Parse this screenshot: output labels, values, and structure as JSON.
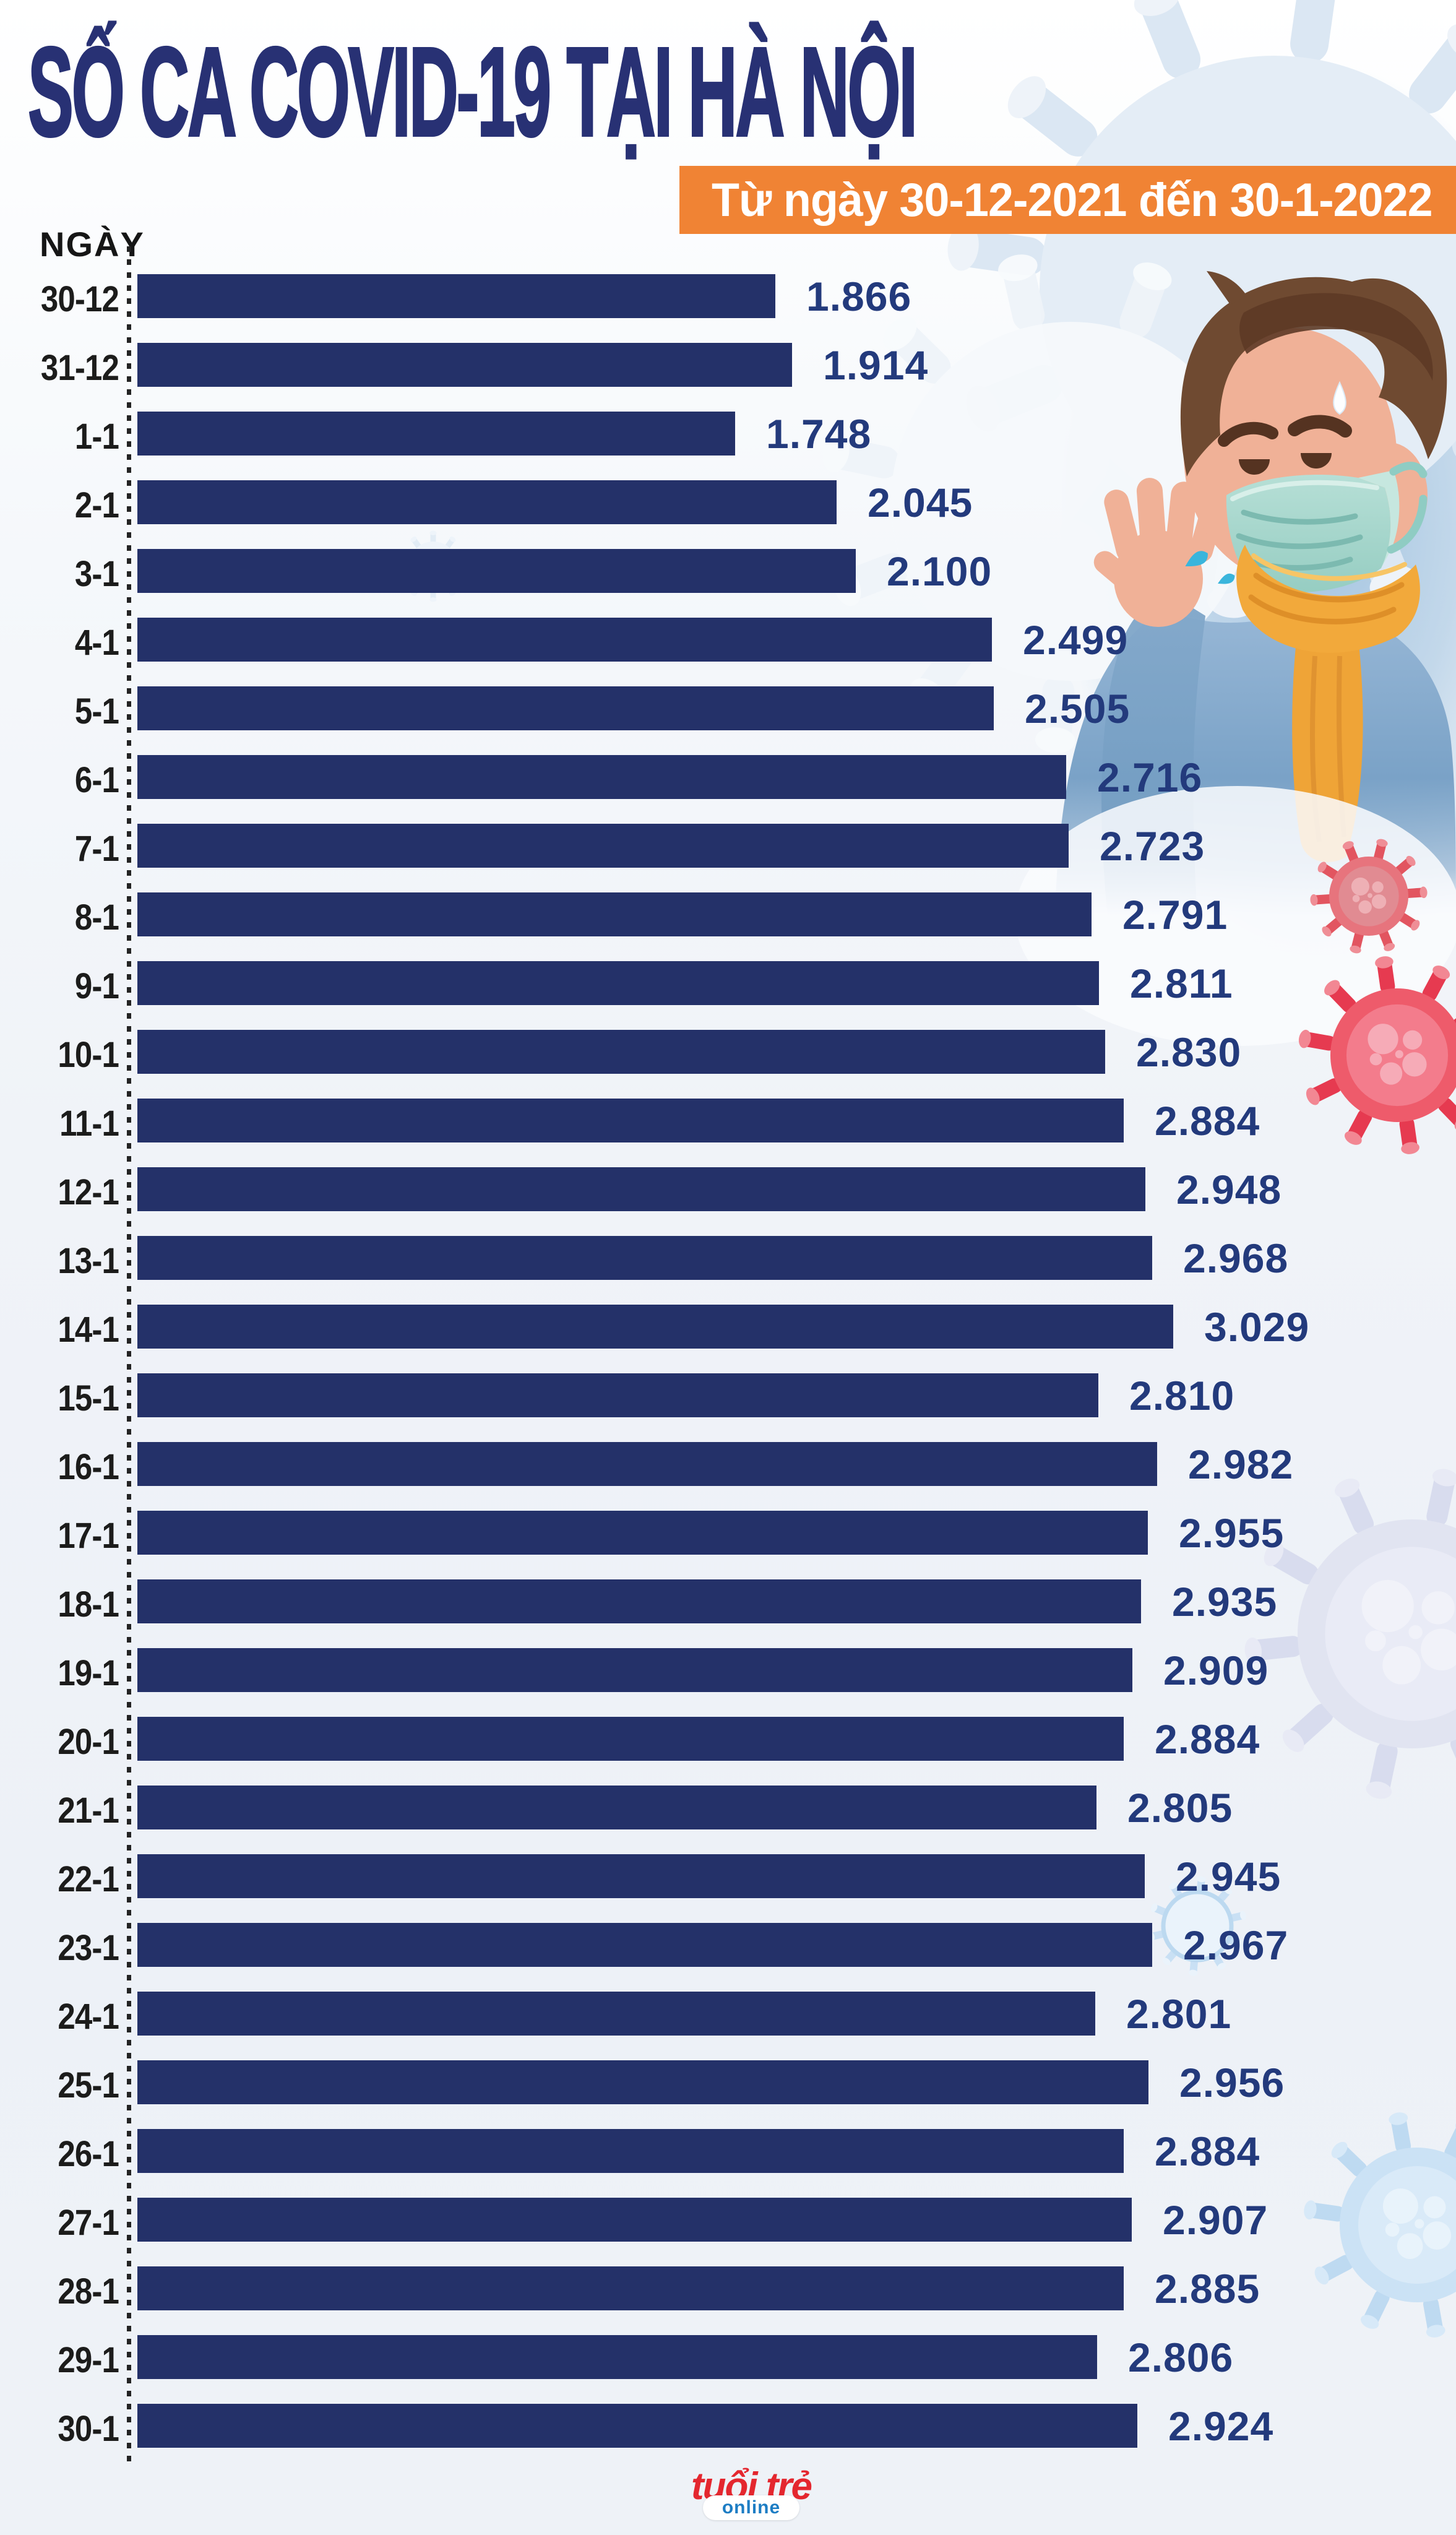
{
  "header": {
    "title": "SỐ CA COVID-19 TẠI HÀ NỘI",
    "subtitle": "Từ ngày 30-12-2021 đến 30-1-2022",
    "axis_label": "NGÀY"
  },
  "chart_data": {
    "type": "bar",
    "orientation": "horizontal",
    "title": "SỐ CA COVID-19 TẠI HÀ NỘI",
    "subtitle": "Từ ngày 30-12-2021 đến 30-1-2022",
    "xlabel": "NGÀY",
    "categories": [
      "30-12",
      "31-12",
      "1-1",
      "2-1",
      "3-1",
      "4-1",
      "5-1",
      "6-1",
      "7-1",
      "8-1",
      "9-1",
      "10-1",
      "11-1",
      "12-1",
      "13-1",
      "14-1",
      "15-1",
      "16-1",
      "17-1",
      "18-1",
      "19-1",
      "20-1",
      "21-1",
      "22-1",
      "23-1",
      "24-1",
      "25-1",
      "26-1",
      "27-1",
      "28-1",
      "29-1",
      "30-1"
    ],
    "values": [
      1866,
      1914,
      1748,
      2045,
      2100,
      2499,
      2505,
      2716,
      2723,
      2791,
      2811,
      2830,
      2884,
      2948,
      2968,
      3029,
      2810,
      2982,
      2955,
      2935,
      2909,
      2884,
      2805,
      2945,
      2967,
      2801,
      2956,
      2884,
      2907,
      2885,
      2806,
      2924
    ],
    "value_labels": [
      "1.866",
      "1.914",
      "1.748",
      "2.045",
      "2.100",
      "2.499",
      "2.505",
      "2.716",
      "2.723",
      "2.791",
      "2.811",
      "2.830",
      "2.884",
      "2.948",
      "2.968",
      "3.029",
      "2.810",
      "2.982",
      "2.955",
      "2.935",
      "2.909",
      "2.884",
      "2.805",
      "2.945",
      "2.967",
      "2.801",
      "2.956",
      "2.884",
      "2.907",
      "2.885",
      "2.806",
      "2.924"
    ],
    "value_axis_max": 3029,
    "grid": false,
    "legend": false
  },
  "footer": {
    "logo_main": "tuổi trẻ",
    "logo_sub": "online"
  },
  "palette": {
    "title_navy": "#283174",
    "bar_navy": "#243169",
    "value_navy": "#233a7c",
    "date_label": "#1c1c1b",
    "subtitle_orange": "#f08334",
    "subtitle_text": "#ffffff",
    "logo_red": "#e4272f",
    "logo_blue": "#1d7dc4",
    "virus_red": "#ee5b6b",
    "virus_pale_blue": "#cbe2f5",
    "virus_lavender": "#e1e4f1",
    "mask_teal": "#a5d6cd",
    "scarf_orange": "#f2a93b",
    "jacket_blue": "#7fa6ca",
    "skin": "#f0b197",
    "hair_brown": "#6f4a31",
    "droplet_teal": "#3ab5dc"
  },
  "icons": {
    "virus": "coronavirus-icon",
    "man": "sick-man-mask-illustration",
    "sweat": "sweat-drop-icon",
    "droplets": "cough-droplets-icon"
  }
}
